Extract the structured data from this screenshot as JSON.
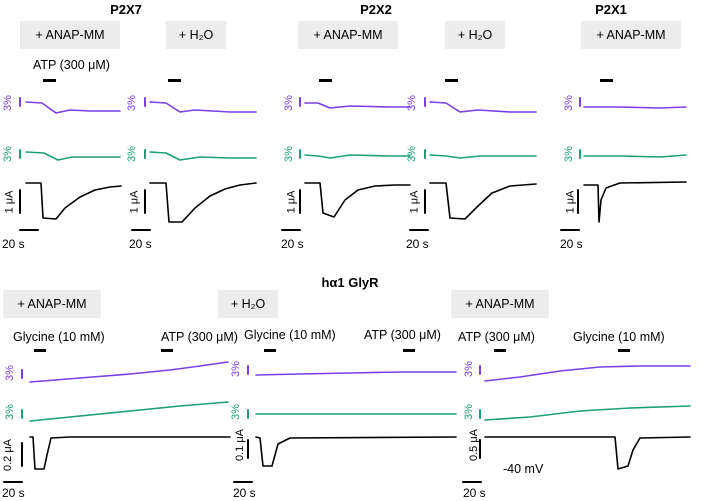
{
  "figure": {
    "top_titles": [
      "P2X7",
      "P2X2",
      "P2X1"
    ],
    "bottom_title": "hα1 GlyR",
    "top_conditions": [
      "+ ANAP-MM",
      "+ H₂O",
      "+ ANAP-MM",
      "+ H₂O",
      "+ ANAP-MM"
    ],
    "bottom_conditions": [
      "+ ANAP-MM",
      "+ H₂O",
      "+ ANAP-MM"
    ],
    "atp_label": "ATP (300 μM)",
    "glycine_label": "Glycine (10 mM)",
    "pct_label": "3%",
    "current_scales": {
      "top": "1 μA",
      "glyr1": "0.2 μA",
      "glyr2": "0.1 μA",
      "glyr3": "0.5 μA"
    },
    "time_scale": "20 s",
    "voltage": "-40 mV"
  },
  "colors": {
    "purple": "#7b3fe4",
    "green": "#1e9e78",
    "black": "#000000",
    "chip": "#ececec"
  }
}
